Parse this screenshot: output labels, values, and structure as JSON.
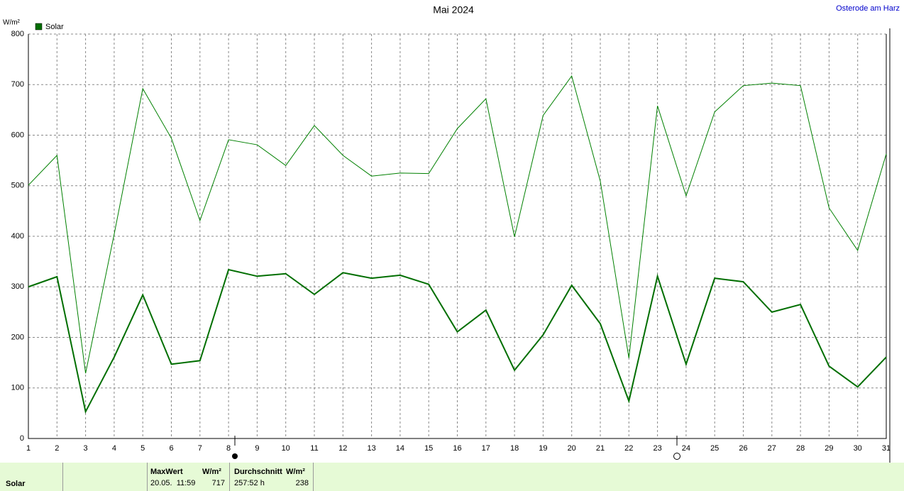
{
  "chart_data": {
    "type": "line",
    "title": "Mai 2024",
    "location": "Osterode am Harz",
    "y_unit": "W/m²",
    "x": [
      1,
      2,
      3,
      4,
      5,
      6,
      7,
      8,
      9,
      10,
      11,
      12,
      13,
      14,
      15,
      16,
      17,
      18,
      19,
      20,
      21,
      22,
      23,
      24,
      25,
      26,
      27,
      28,
      29,
      30,
      31
    ],
    "xlim": [
      1,
      31
    ],
    "xticks": [
      1,
      2,
      3,
      4,
      5,
      6,
      7,
      8,
      9,
      10,
      11,
      12,
      13,
      14,
      15,
      16,
      17,
      18,
      19,
      20,
      21,
      22,
      23,
      24,
      25,
      26,
      27,
      28,
      29,
      30,
      31
    ],
    "ylim": [
      0,
      800
    ],
    "yticks": [
      0,
      100,
      200,
      300,
      400,
      500,
      600,
      700,
      800
    ],
    "grid": true,
    "series": [
      {
        "name": "Solar",
        "color": "#006e00",
        "width": 2,
        "values": [
          300,
          320,
          53,
          161,
          284,
          147,
          154,
          334,
          321,
          326,
          285,
          328,
          317,
          323,
          305,
          211,
          254,
          135,
          205,
          303,
          227,
          74,
          321,
          147,
          317,
          310,
          250,
          265,
          143,
          102,
          161
        ]
      },
      {
        "color": "#008000",
        "width": 1,
        "values": [
          501,
          560,
          129,
          404,
          692,
          594,
          431,
          591,
          581,
          540,
          619,
          560,
          519,
          525,
          524,
          613,
          672,
          399,
          639,
          717,
          509,
          159,
          658,
          480,
          646,
          698,
          703,
          698,
          456,
          372,
          563
        ]
      }
    ]
  },
  "footer": {
    "label": "Solar",
    "max_header": "MaxWert",
    "max_unit": "W/m²",
    "max_time": "20.05.  11:59",
    "max_value": "717",
    "avg_header": "Durchschnitt",
    "avg_unit": "W/m²",
    "avg_duration": "257:52 h",
    "avg_value": "238"
  }
}
